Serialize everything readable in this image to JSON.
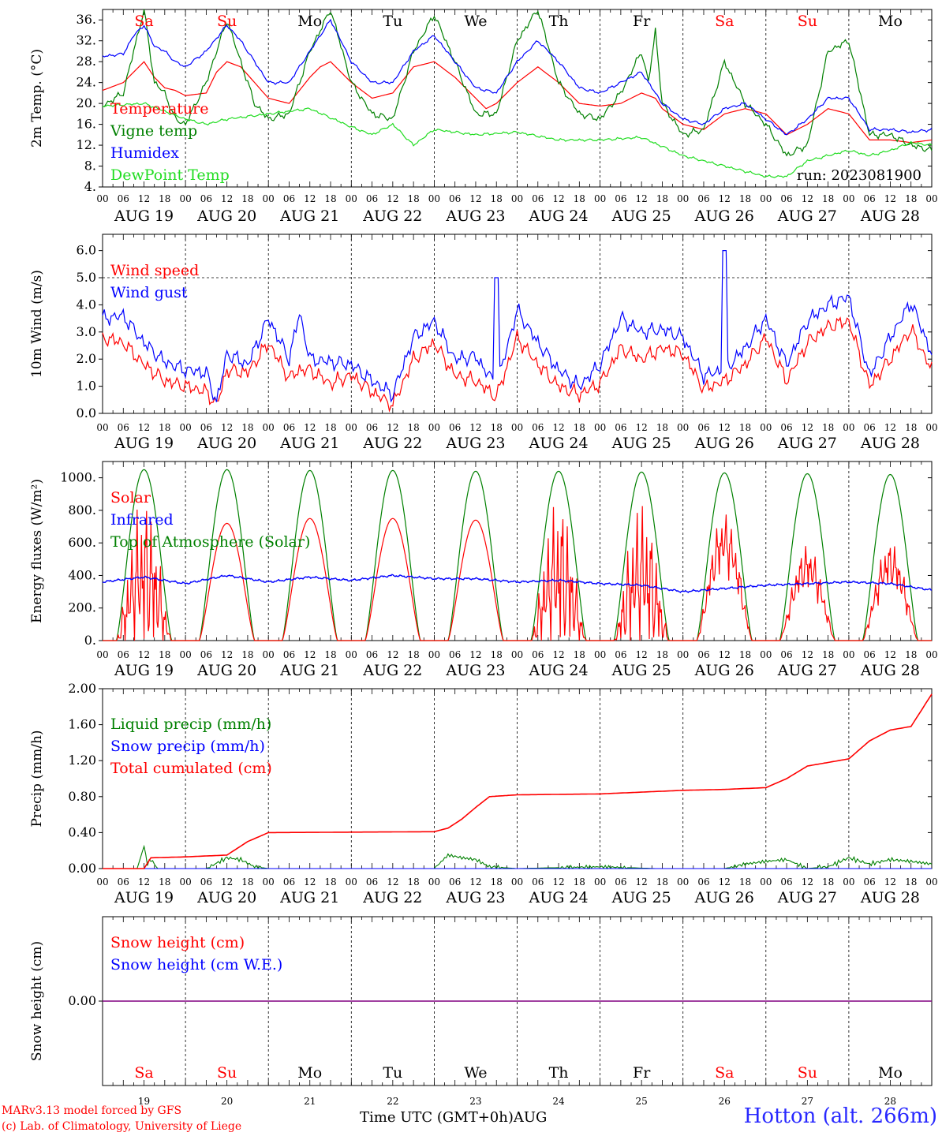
{
  "credits": {
    "model": "MARv3.13 model forced by GFS",
    "lab": "(c) Lab. of Climatology, University of Liege"
  },
  "footer": {
    "time_label": "Time UTC (GMT+0h)",
    "month": "AUG",
    "station": "Hotton (alt. 266m)"
  },
  "run_label": "run: 2023081900",
  "colors": {
    "red": "#ff0000",
    "green": "#008000",
    "blue": "#0000ff",
    "lightgreen": "#22dd22",
    "purple": "#800080",
    "weekend": "#ff0000",
    "weekday": "#000000"
  },
  "days": [
    {
      "num": "19",
      "dow": "Sa",
      "label": "AUG 19",
      "weekend": true
    },
    {
      "num": "20",
      "dow": "Su",
      "label": "AUG 20",
      "weekend": true
    },
    {
      "num": "21",
      "dow": "Mo",
      "label": "AUG 21",
      "weekend": false
    },
    {
      "num": "22",
      "dow": "Tu",
      "label": "AUG 22",
      "weekend": false
    },
    {
      "num": "23",
      "dow": "We",
      "label": "AUG 23",
      "weekend": false
    },
    {
      "num": "24",
      "dow": "Th",
      "label": "AUG 24",
      "weekend": false
    },
    {
      "num": "25",
      "dow": "Fr",
      "label": "AUG 25",
      "weekend": false
    },
    {
      "num": "26",
      "dow": "Sa",
      "label": "AUG 26",
      "weekend": true
    },
    {
      "num": "27",
      "dow": "Su",
      "label": "AUG 27",
      "weekend": true
    },
    {
      "num": "28",
      "dow": "Mo",
      "label": "AUG 28",
      "weekend": false
    }
  ],
  "hour_ticks": [
    "00",
    "06",
    "12",
    "18"
  ],
  "chart_data": [
    {
      "id": "temp",
      "type": "line",
      "ylabel": "2m Temp. (°C)",
      "ylim": [
        4,
        38
      ],
      "yticks": [
        "4.",
        "8.",
        "12.",
        "16.",
        "20.",
        "24.",
        "28.",
        "32.",
        "36."
      ],
      "x_unit": "hours since Aug 19 00 UTC",
      "series": [
        {
          "name": "Temperature",
          "color": "red",
          "x": [
            0,
            6,
            9,
            12,
            15,
            18,
            21,
            24,
            30,
            33,
            36,
            40,
            44,
            48,
            54,
            60,
            63,
            66,
            72,
            78,
            84,
            90,
            96,
            102,
            108,
            111,
            114,
            120,
            126,
            132,
            138,
            144,
            150,
            156,
            160,
            162,
            168,
            174,
            180,
            186,
            192,
            198,
            204,
            210,
            216,
            222,
            228,
            234,
            240
          ],
          "values": [
            22.5,
            24,
            26,
            28,
            25,
            23,
            22.5,
            21.5,
            22,
            26,
            28,
            27,
            24,
            21,
            20,
            25,
            27,
            28,
            24,
            21,
            22,
            27,
            28,
            25,
            21,
            19,
            20,
            24,
            27,
            24,
            20,
            19.5,
            20,
            22,
            21,
            19,
            16,
            15,
            18,
            19,
            18,
            14,
            16,
            19,
            18,
            13,
            13,
            12.5,
            13
          ]
        },
        {
          "name": "Vigne temp",
          "color": "green",
          "x": [
            0,
            6,
            9,
            12,
            15,
            18,
            21,
            24,
            30,
            36,
            40,
            44,
            48,
            54,
            60,
            66,
            72,
            78,
            84,
            90,
            96,
            102,
            108,
            114,
            120,
            126,
            132,
            138,
            144,
            150,
            156,
            158,
            160,
            162,
            168,
            174,
            180,
            186,
            192,
            198,
            204,
            210,
            216,
            222,
            228,
            234,
            240
          ],
          "values": [
            19.5,
            22,
            30,
            38,
            24,
            22,
            17,
            16,
            24,
            36,
            28,
            20,
            17,
            18,
            30,
            38,
            24,
            18,
            17,
            30,
            37,
            28,
            18,
            18,
            32,
            38,
            24,
            18,
            17,
            22,
            30,
            24,
            34,
            20,
            14,
            15,
            28,
            20,
            16,
            10,
            12,
            30,
            32,
            14,
            14,
            12,
            11
          ]
        },
        {
          "name": "Humidex",
          "color": "blue",
          "x": [
            0,
            6,
            9,
            12,
            15,
            18,
            21,
            24,
            30,
            36,
            40,
            44,
            48,
            54,
            60,
            66,
            72,
            78,
            84,
            90,
            96,
            102,
            108,
            114,
            120,
            126,
            132,
            138,
            144,
            150,
            156,
            160,
            162,
            168,
            174,
            180,
            186,
            192,
            198,
            204,
            210,
            216,
            222,
            228,
            234,
            240
          ],
          "values": [
            29,
            29.5,
            33,
            35,
            31,
            30,
            28,
            27,
            30,
            35,
            32,
            28,
            24,
            24,
            30,
            36,
            28,
            24,
            24,
            30,
            33,
            28,
            23,
            22,
            28,
            32,
            28,
            23,
            22,
            24,
            26,
            22,
            20,
            17,
            16,
            19,
            20,
            17,
            14,
            17,
            21,
            21,
            15,
            15,
            14.5,
            15
          ]
        },
        {
          "name": "DewPoint Temp",
          "color": "lightgreen",
          "x": [
            0,
            12,
            24,
            30,
            36,
            48,
            60,
            72,
            78,
            84,
            90,
            96,
            108,
            120,
            132,
            144,
            156,
            168,
            174,
            180,
            186,
            192,
            198,
            204,
            216,
            222,
            228,
            234,
            240
          ],
          "values": [
            19.5,
            20,
            17,
            16,
            17,
            18,
            19,
            15.5,
            14,
            16,
            12,
            15,
            14,
            14.5,
            13,
            13,
            13.5,
            10,
            9,
            8,
            7,
            6,
            6,
            9,
            11,
            10,
            11,
            12.5,
            12
          ]
        }
      ]
    },
    {
      "id": "wind",
      "type": "line",
      "ylabel": "10m Wind (m/s)",
      "ylim": [
        0,
        6.6
      ],
      "yticks": [
        "0.0",
        "1.0",
        "2.0",
        "3.0",
        "4.0",
        "5.0",
        "6.0"
      ],
      "reference_line": 5.0,
      "series": [
        {
          "name": "Wind speed",
          "color": "red",
          "x": [
            0,
            6,
            12,
            18,
            24,
            30,
            33,
            36,
            42,
            48,
            54,
            57,
            60,
            66,
            72,
            78,
            84,
            90,
            96,
            102,
            108,
            114,
            120,
            126,
            132,
            138,
            144,
            150,
            156,
            162,
            168,
            174,
            180,
            186,
            192,
            198,
            204,
            210,
            216,
            222,
            228,
            234,
            240
          ],
          "values": [
            2.8,
            2.6,
            1.8,
            1.2,
            1.0,
            0.8,
            0.3,
            1.6,
            1.5,
            2.6,
            1.3,
            1.6,
            1.6,
            1.1,
            1.4,
            0.8,
            0.3,
            2.0,
            2.6,
            1.4,
            1.2,
            0.6,
            2.8,
            1.8,
            1.0,
            0.7,
            1.1,
            2.4,
            2.0,
            2.4,
            2.2,
            0.9,
            1.2,
            1.8,
            2.8,
            1.2,
            2.6,
            3.2,
            3.4,
            1.0,
            2.0,
            3.1,
            1.6
          ]
        },
        {
          "name": "Wind gust",
          "color": "blue",
          "x": [
            0,
            6,
            12,
            18,
            24,
            30,
            33,
            36,
            42,
            48,
            54,
            57,
            60,
            66,
            72,
            78,
            84,
            90,
            96,
            102,
            108,
            114,
            120,
            126,
            132,
            138,
            144,
            150,
            156,
            162,
            168,
            174,
            180,
            186,
            192,
            198,
            204,
            210,
            216,
            222,
            228,
            234,
            240
          ],
          "values": [
            3.5,
            3.6,
            2.6,
            1.9,
            1.6,
            1.5,
            0.4,
            2.2,
            1.8,
            3.5,
            2.0,
            3.7,
            2.0,
            1.9,
            1.8,
            1.2,
            0.7,
            2.8,
            3.4,
            2.0,
            2.1,
            1.0,
            3.8,
            2.6,
            1.6,
            1.0,
            1.8,
            3.5,
            3.0,
            3.1,
            2.8,
            1.4,
            1.6,
            2.4,
            3.5,
            1.8,
            3.4,
            4.0,
            4.3,
            1.4,
            2.8,
            4.1,
            2.2
          ]
        }
      ]
    },
    {
      "id": "energy",
      "type": "line",
      "ylabel": "Energy fluxes (W/m²)",
      "ylim": [
        0,
        1100
      ],
      "yticks": [
        "0.",
        "200.",
        "400.",
        "600.",
        "800.",
        "1000."
      ],
      "series": [
        {
          "name": "Solar",
          "color": "red",
          "daily_peak": [
            720,
            720,
            750,
            750,
            740,
            720,
            710,
            750,
            560,
            580
          ]
        },
        {
          "name": "Infrared",
          "color": "blue",
          "x": [
            0,
            12,
            24,
            36,
            48,
            60,
            72,
            84,
            96,
            108,
            120,
            132,
            144,
            156,
            168,
            180,
            192,
            204,
            216,
            228,
            240
          ],
          "values": [
            360,
            390,
            350,
            400,
            360,
            390,
            370,
            400,
            380,
            380,
            360,
            370,
            350,
            340,
            300,
            320,
            340,
            350,
            360,
            350,
            310
          ]
        },
        {
          "name": "Top of Atmosphere (Solar)",
          "color": "green",
          "daily_peak": [
            1050,
            1050,
            1045,
            1045,
            1040,
            1040,
            1035,
            1030,
            1025,
            1020
          ]
        }
      ]
    },
    {
      "id": "precip",
      "type": "line",
      "ylabel": "Precip (mm/h)",
      "ylim": [
        0,
        2.0
      ],
      "yticks": [
        "0.00",
        "0.40",
        "0.80",
        "1.20",
        "1.60",
        "2.00"
      ],
      "series": [
        {
          "name": "Liquid precip (mm/h)",
          "color": "green",
          "x": [
            0,
            10,
            12,
            13,
            14,
            16,
            24,
            30,
            36,
            40,
            44,
            48,
            96,
            100,
            104,
            108,
            112,
            120,
            144,
            160,
            168,
            180,
            186,
            192,
            198,
            204,
            210,
            216,
            222,
            228,
            234,
            240
          ],
          "values": [
            0,
            0,
            0.25,
            0.05,
            0.1,
            0,
            0,
            0,
            0.12,
            0.1,
            0.02,
            0,
            0,
            0.15,
            0.12,
            0.1,
            0.02,
            0,
            0.02,
            0,
            0,
            0,
            0.05,
            0.08,
            0.1,
            0,
            0.02,
            0.12,
            0.05,
            0.1,
            0.08,
            0.05
          ]
        },
        {
          "name": "Snow precip (mm/h)",
          "color": "blue",
          "x": [
            0,
            240
          ],
          "values": [
            0,
            0
          ]
        },
        {
          "name": "Total cumulated (cm)",
          "color": "red",
          "x": [
            0,
            12,
            14,
            24,
            36,
            42,
            48,
            96,
            100,
            104,
            108,
            112,
            120,
            144,
            168,
            180,
            192,
            198,
            204,
            210,
            216,
            222,
            228,
            234,
            240
          ],
          "values": [
            0,
            0,
            0.12,
            0.13,
            0.15,
            0.3,
            0.4,
            0.41,
            0.45,
            0.55,
            0.68,
            0.8,
            0.82,
            0.83,
            0.87,
            0.88,
            0.9,
            1.0,
            1.14,
            1.18,
            1.22,
            1.42,
            1.54,
            1.58,
            1.94
          ]
        }
      ]
    },
    {
      "id": "snow",
      "type": "line",
      "ylabel": "Snow height (cm)",
      "yticks": [
        "0.00"
      ],
      "series": [
        {
          "name": "Snow height (cm)",
          "color": "red",
          "x": [
            0,
            240
          ],
          "values": [
            0,
            0
          ]
        },
        {
          "name": "Snow height (cm W.E.)",
          "color": "blue",
          "x": [
            0,
            240
          ],
          "values": [
            0,
            0
          ]
        }
      ]
    }
  ]
}
